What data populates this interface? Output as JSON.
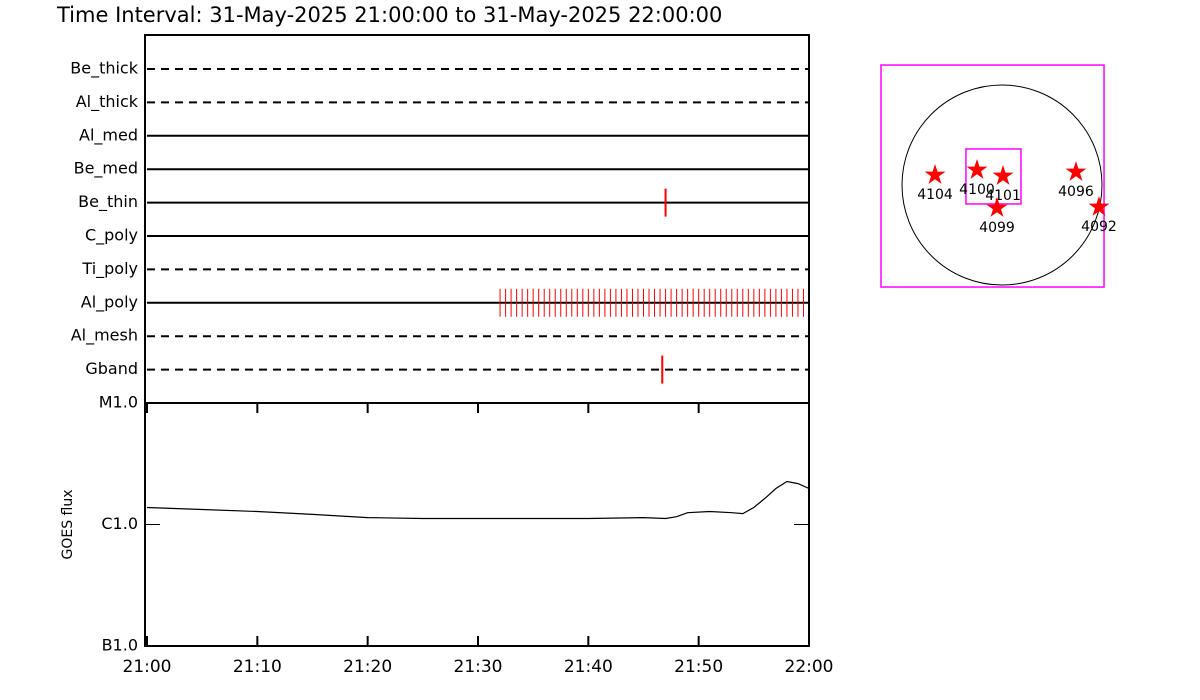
{
  "title": "Time Interval: 31-May-2025 21:00:00 to 31-May-2025 22:00:00",
  "chart_data": [
    {
      "type": "timeline",
      "xlim": [
        0,
        60
      ],
      "obs_color": "#ff0000",
      "filters": [
        {
          "name": "Be_thick",
          "line": "dashed",
          "obs": []
        },
        {
          "name": "Al_thick",
          "line": "dashed",
          "obs": []
        },
        {
          "name": "Al_med",
          "line": "solid",
          "obs": []
        },
        {
          "name": "Be_med",
          "line": "solid",
          "obs": []
        },
        {
          "name": "Be_thin",
          "line": "solid",
          "obs": [
            47.0
          ]
        },
        {
          "name": "C_poly",
          "line": "solid",
          "obs": []
        },
        {
          "name": "Ti_poly",
          "line": "dashed",
          "obs": []
        },
        {
          "name": "Al_poly",
          "line": "solid",
          "obs": [
            32.0,
            32.5,
            33.0,
            33.5,
            34.0,
            34.5,
            35.0,
            35.5,
            36.0,
            36.5,
            37.0,
            37.5,
            38.0,
            38.5,
            39.0,
            39.5,
            40.0,
            40.5,
            41.0,
            41.5,
            42.0,
            42.5,
            43.0,
            43.5,
            44.0,
            44.5,
            45.0,
            45.5,
            46.0,
            46.5,
            47.0,
            47.5,
            48.0,
            48.5,
            49.0,
            49.5,
            50.0,
            50.5,
            51.0,
            51.5,
            52.0,
            52.5,
            53.0,
            53.5,
            54.0,
            54.5,
            55.0,
            55.5,
            56.0,
            56.5,
            57.0,
            57.5,
            58.0,
            58.5,
            59.0,
            59.5
          ]
        },
        {
          "name": "Al_mesh",
          "line": "dashed",
          "obs": []
        },
        {
          "name": "Gband",
          "line": "dashed",
          "obs": [
            46.7
          ]
        }
      ]
    },
    {
      "type": "line",
      "y_label": "GOES flux",
      "log": true,
      "color": "#000000",
      "xlim": [
        0,
        60
      ],
      "ylim": [
        1e-07,
        1e-05
      ],
      "xticks": [
        {
          "value": 0,
          "label": "21:00"
        },
        {
          "value": 10,
          "label": "21:10"
        },
        {
          "value": 20,
          "label": "21:20"
        },
        {
          "value": 30,
          "label": "21:30"
        },
        {
          "value": 40,
          "label": "21:40"
        },
        {
          "value": 50,
          "label": "21:50"
        },
        {
          "value": 60,
          "label": "22:00"
        }
      ],
      "yticks": [
        {
          "value": 1e-07,
          "label": "B1.0"
        },
        {
          "value": 1e-06,
          "label": "C1.0"
        },
        {
          "value": 1e-05,
          "label": "M1.0"
        }
      ],
      "x": [
        0,
        5,
        10,
        15,
        20,
        25,
        30,
        35,
        40,
        45,
        47,
        48,
        49,
        51,
        53,
        54,
        55,
        56,
        57,
        58,
        59,
        60
      ],
      "values": [
        1.38e-06,
        1.33e-06,
        1.28e-06,
        1.21e-06,
        1.14e-06,
        1.12e-06,
        1.12e-06,
        1.12e-06,
        1.12e-06,
        1.14e-06,
        1.12e-06,
        1.16e-06,
        1.25e-06,
        1.28e-06,
        1.25e-06,
        1.23e-06,
        1.38e-06,
        1.64e-06,
        1.98e-06,
        2.26e-06,
        2.17e-06,
        1.98e-06
      ]
    },
    {
      "type": "map",
      "disk_radius": 960,
      "box_color": "#ff00ff",
      "marker_color": "#ff0000",
      "fov_boxes": [
        {
          "xc": -91,
          "yc": 86,
          "w": 2141,
          "h": 2131
        },
        {
          "xc": -82,
          "yc": 82,
          "w": 528,
          "h": 528
        }
      ],
      "regions": [
        {
          "label": "4104",
          "x": -643,
          "y": 96
        },
        {
          "label": "4100",
          "x": -240,
          "y": 144
        },
        {
          "label": "4101",
          "x": 10,
          "y": 86
        },
        {
          "label": "4099",
          "x": -48,
          "y": -221
        },
        {
          "label": "4096",
          "x": 710,
          "y": 125
        },
        {
          "label": "4092",
          "x": 931,
          "y": -211
        }
      ]
    }
  ]
}
